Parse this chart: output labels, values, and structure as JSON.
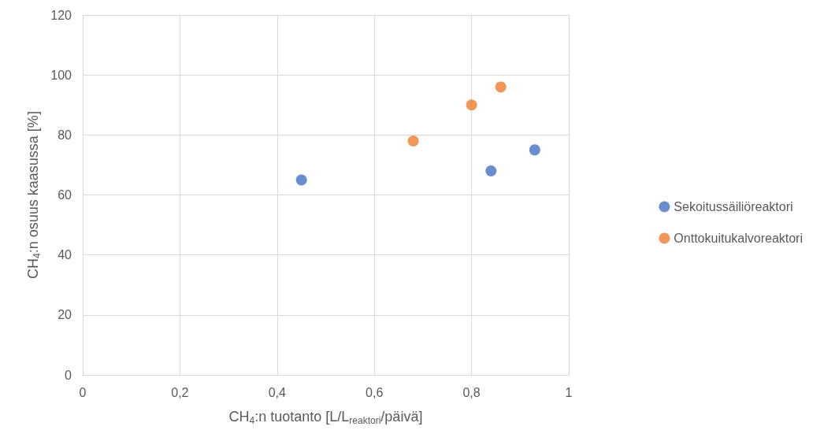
{
  "chart_data": {
    "type": "scatter",
    "xlabel": "CH$_{4}$:n tuotanto [L/L$_{reaktori}$/päivä]",
    "ylabel": "CH$_{4}$:n osuus kaasussa [%]",
    "series": [
      {
        "name": "Sekoitussäiliöreaktori",
        "color": "#4472c4",
        "x": [
          0.45,
          0.84,
          0.93
        ],
        "values": [
          65,
          68,
          75
        ]
      },
      {
        "name": "Onttokuitukalvoreaktori",
        "color": "#ed7d31",
        "x": [
          0.68,
          0.8,
          0.86
        ],
        "values": [
          78,
          90,
          96
        ]
      }
    ],
    "xlim": [
      0,
      1
    ],
    "xticks": [
      {
        "value": 0,
        "label": "0"
      },
      {
        "value": 0.2,
        "label": "0,2"
      },
      {
        "value": 0.4,
        "label": "0,4"
      },
      {
        "value": 0.6,
        "label": "0,6"
      },
      {
        "value": 0.8,
        "label": "0,8"
      },
      {
        "value": 1,
        "label": "1"
      }
    ],
    "ylim": [
      0,
      120
    ],
    "yticks": [
      0,
      20,
      40,
      60,
      80,
      100,
      120
    ],
    "grid": true,
    "legend": "right",
    "marker": "circle"
  }
}
